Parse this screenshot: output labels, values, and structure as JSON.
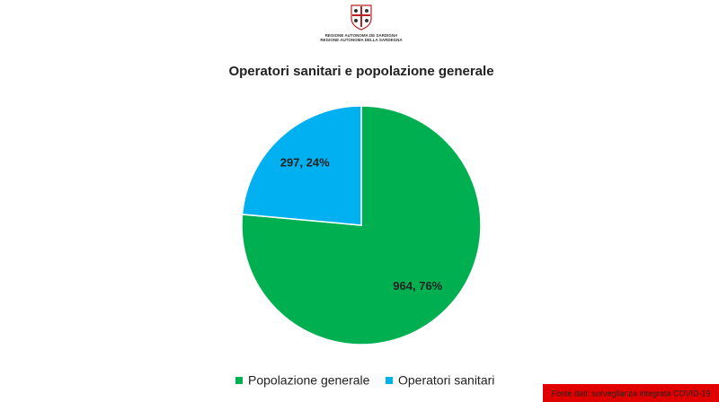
{
  "header": {
    "lines": [
      "REGIONE AUTONOMA DE SARDIGNA",
      "REGIONE AUTONOMA DELLA SARDEGNA"
    ]
  },
  "chart_data": {
    "type": "pie",
    "title": "Operatori sanitari e popolazione generale",
    "categories": [
      "Popolazione generale",
      "Operatori sanitari"
    ],
    "values": [
      964,
      297
    ],
    "value_labels": [
      "964, 76%",
      "297, 24%"
    ],
    "colors": [
      "#00b050",
      "#00b0f0"
    ],
    "legend": "bottom"
  },
  "footer": {
    "source": "Fonte dati: sorveglianza integrata COVID-19"
  }
}
